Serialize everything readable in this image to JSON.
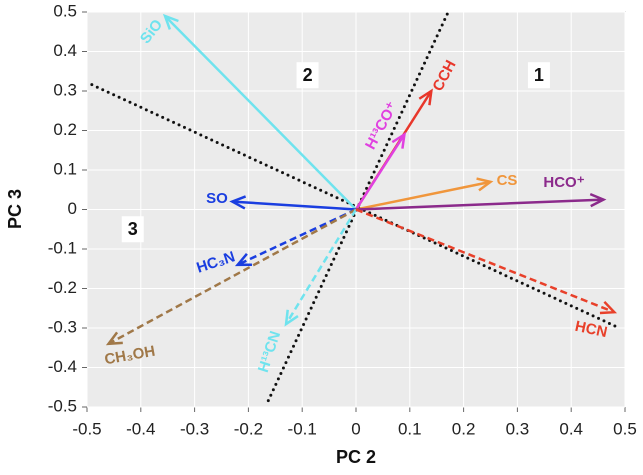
{
  "chart_data": {
    "type": "biplot",
    "xlabel": "PC 2",
    "ylabel": "PC 3",
    "xlim": [
      -0.5,
      0.5
    ],
    "ylim": [
      -0.5,
      0.5
    ],
    "xticks": [
      -0.5,
      -0.4,
      -0.3,
      -0.2,
      -0.1,
      0,
      0.1,
      0.2,
      0.3,
      0.4,
      0.5
    ],
    "yticks": [
      -0.5,
      -0.4,
      -0.3,
      -0.2,
      -0.1,
      0,
      0.1,
      0.2,
      0.3,
      0.4,
      0.5
    ],
    "grid": true,
    "series": [
      {
        "name": "SiO",
        "color": "#6fe3ee",
        "style": "solid",
        "x": -0.355,
        "y": 0.49
      },
      {
        "name": "CCH",
        "color": "#e8372b",
        "style": "solid",
        "x": 0.14,
        "y": 0.3
      },
      {
        "name": "H¹³CO⁺",
        "color": "#e040e0",
        "style": "solid",
        "x": 0.09,
        "y": 0.19
      },
      {
        "name": "CS",
        "color": "#f0963c",
        "style": "solid",
        "x": 0.25,
        "y": 0.07
      },
      {
        "name": "HCO⁺",
        "color": "#8b2a8b",
        "style": "solid",
        "x": 0.46,
        "y": 0.025
      },
      {
        "name": "SO",
        "color": "#1a3ee0",
        "style": "solid",
        "x": -0.23,
        "y": 0.02
      },
      {
        "name": "HC₃N",
        "color": "#1a3ee0",
        "style": "dashed",
        "x": -0.22,
        "y": -0.14
      },
      {
        "name": "CH₃OH",
        "color": "#a07848",
        "style": "dashed",
        "x": -0.46,
        "y": -0.34
      },
      {
        "name": "H¹³CN",
        "color": "#6fe3ee",
        "style": "dashed",
        "x": -0.13,
        "y": -0.29
      },
      {
        "name": "HCN",
        "color": "#e8402a",
        "style": "dashed",
        "x": 0.48,
        "y": -0.26
      }
    ],
    "dividers": [
      {
        "x": [
          -0.163,
          0.171
        ],
        "y": [
          -0.484,
          0.499
        ]
      },
      {
        "x": [
          -0.491,
          0.491
        ],
        "y": [
          0.316,
          -0.301
        ]
      }
    ],
    "regions": [
      {
        "label": "1",
        "x": 0.34,
        "y": 0.34
      },
      {
        "label": "2",
        "x": -0.09,
        "y": 0.34
      },
      {
        "label": "3",
        "x": -0.415,
        "y": -0.05
      }
    ]
  }
}
